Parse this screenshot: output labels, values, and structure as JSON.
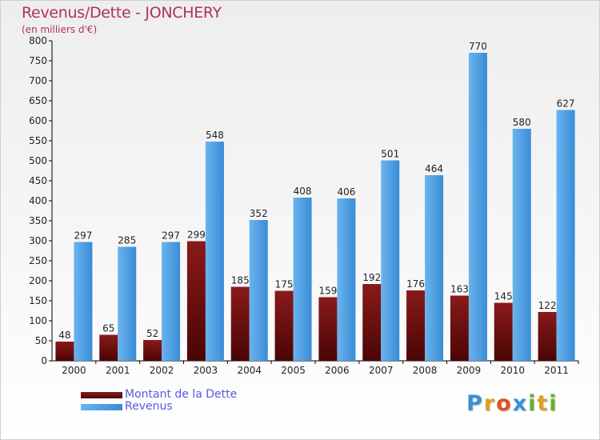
{
  "chart_data": {
    "type": "bar",
    "title": "Revenus/Dette - JONCHERY",
    "subtitle": "(en milliers d'€)",
    "categories": [
      "2000",
      "2001",
      "2002",
      "2003",
      "2004",
      "2005",
      "2006",
      "2007",
      "2008",
      "2009",
      "2010",
      "2011"
    ],
    "series": [
      {
        "name": "Montant de la Dette",
        "color": "#6b0a0a",
        "values": [
          48,
          65,
          52,
          299,
          185,
          175,
          159,
          192,
          176,
          163,
          145,
          122
        ]
      },
      {
        "name": "Revenus",
        "color": "#4a9ee0",
        "values": [
          297,
          285,
          297,
          548,
          352,
          408,
          406,
          501,
          464,
          770,
          580,
          627
        ]
      }
    ],
    "ylim": [
      0,
      800
    ],
    "yticks": [
      0,
      50,
      100,
      150,
      200,
      250,
      300,
      350,
      400,
      450,
      500,
      550,
      600,
      650,
      700,
      750,
      800
    ],
    "grid": false,
    "legend_position": "bottom-left"
  },
  "logo": {
    "text": "Proxiti",
    "letters": [
      "P",
      "r",
      "o",
      "x",
      "i",
      "t",
      "i"
    ],
    "colors": [
      "#3a8fd8",
      "#e0a020",
      "#e05020",
      "#3a8fd8",
      "#60b030",
      "#e0a020",
      "#60b030"
    ]
  }
}
